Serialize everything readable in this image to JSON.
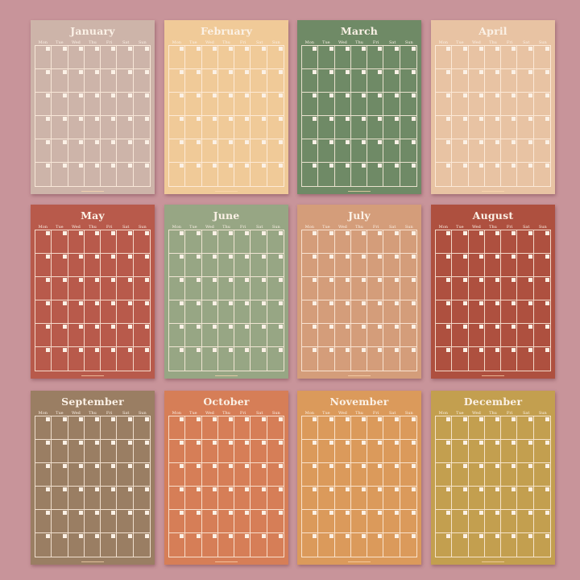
{
  "weekdays": [
    "Mon",
    "Tue",
    "Wed",
    "Thu",
    "Fri",
    "Sat",
    "Sun"
  ],
  "months": [
    {
      "name": "January",
      "color": "#cdb4a9"
    },
    {
      "name": "February",
      "color": "#f0ca98"
    },
    {
      "name": "March",
      "color": "#6f8a66"
    },
    {
      "name": "April",
      "color": "#e8c3a3"
    },
    {
      "name": "May",
      "color": "#b85a4b"
    },
    {
      "name": "June",
      "color": "#97a684"
    },
    {
      "name": "July",
      "color": "#d49d7a"
    },
    {
      "name": "August",
      "color": "#ae503f"
    },
    {
      "name": "September",
      "color": "#9a7e63"
    },
    {
      "name": "October",
      "color": "#d67e57"
    },
    {
      "name": "November",
      "color": "#db9a5b"
    },
    {
      "name": "December",
      "color": "#c39f4f"
    }
  ]
}
